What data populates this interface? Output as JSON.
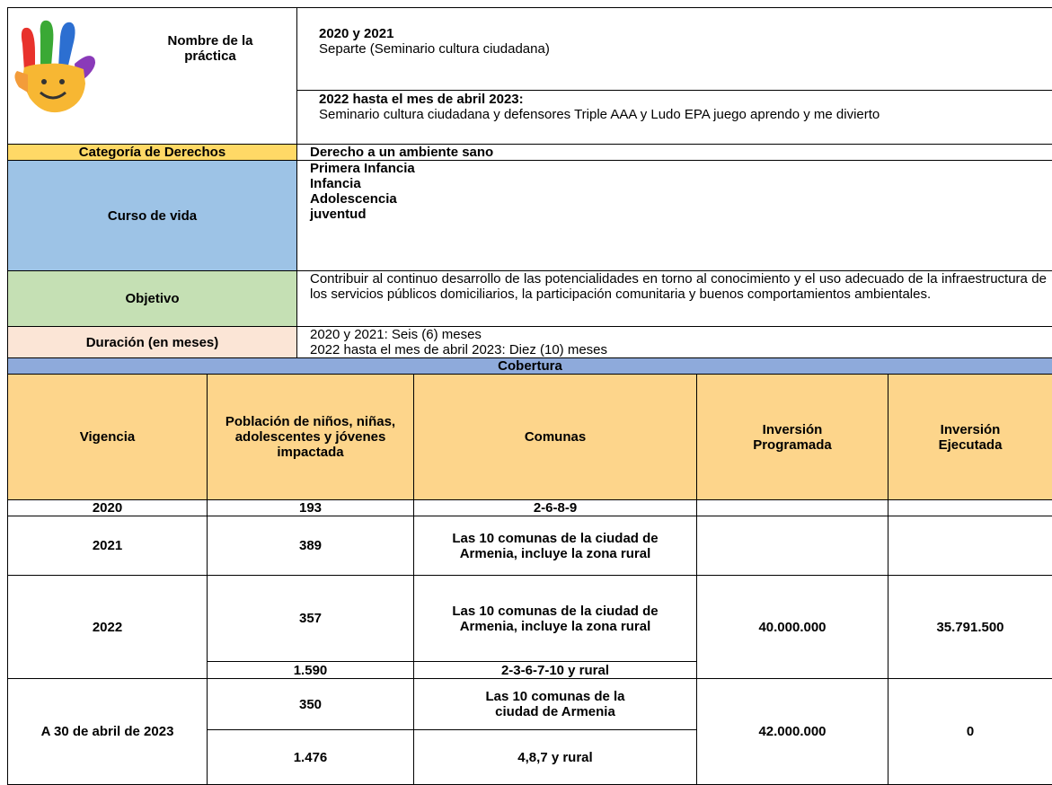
{
  "practice": {
    "label": "Nombre de la práctica",
    "entries": [
      {
        "heading": "2020 y 2021",
        "text": "Separte (Seminario cultura ciudadana)"
      },
      {
        "heading": "2022 hasta el mes de abril 2023:",
        "text": "Seminario cultura ciudadana y defensores Triple AAA y Ludo EPA juego aprendo y me divierto"
      }
    ]
  },
  "rights_category": {
    "label": "Categoría de Derechos",
    "value": "Derecho a un ambiente sano"
  },
  "life_course": {
    "label": "Curso de vida",
    "values": [
      "Primera Infancia",
      "Infancia",
      "Adolescencia",
      "juventud"
    ]
  },
  "objective": {
    "label": "Objetivo",
    "value": "Contribuir al continuo desarrollo de las potencialidades en torno al conocimiento y el uso adecuado de la infraestructura de los servicios públicos domiciliarios, la participación comunitaria y buenos comportamientos ambientales."
  },
  "duration": {
    "label": "Duración (en meses)",
    "values": [
      "2020 y 2021: Seis (6) meses",
      "2022 hasta el mes de abril 2023: Diez (10) meses"
    ]
  },
  "coverage": {
    "title": "Cobertura",
    "headers": [
      "Vigencia",
      "Población de niños, niñas, adolescentes y jóvenes impactada",
      "Comunas",
      "Inversión Programada",
      "Inversión Ejecutada"
    ],
    "rows": [
      {
        "vigencia": "2020",
        "groups": [
          {
            "population": "193",
            "comunas": "2-6-8-9"
          }
        ]
      },
      {
        "vigencia": "2021",
        "groups": [
          {
            "population": "389",
            "comunas": "Las 10 comunas de la ciudad de Armenia, incluye la zona rural"
          }
        ]
      },
      {
        "vigencia": "2022",
        "groups": [
          {
            "population": "357",
            "comunas": "Las 10 comunas de la ciudad de Armenia, incluye la zona rural"
          },
          {
            "population": "1.590",
            "comunas": "2-3-6-7-10 y rural"
          }
        ],
        "programmed": "40.000.000",
        "executed": "35.791.500"
      },
      {
        "vigencia": "A 30 de abril de 2023",
        "groups": [
          {
            "population": "350",
            "comunas": "Las 10 comunas de la ciudad de Armenia"
          },
          {
            "population": "1.476",
            "comunas": "4,8,7 y rural"
          }
        ],
        "programmed": "42.000.000",
        "executed": "0"
      }
    ]
  }
}
